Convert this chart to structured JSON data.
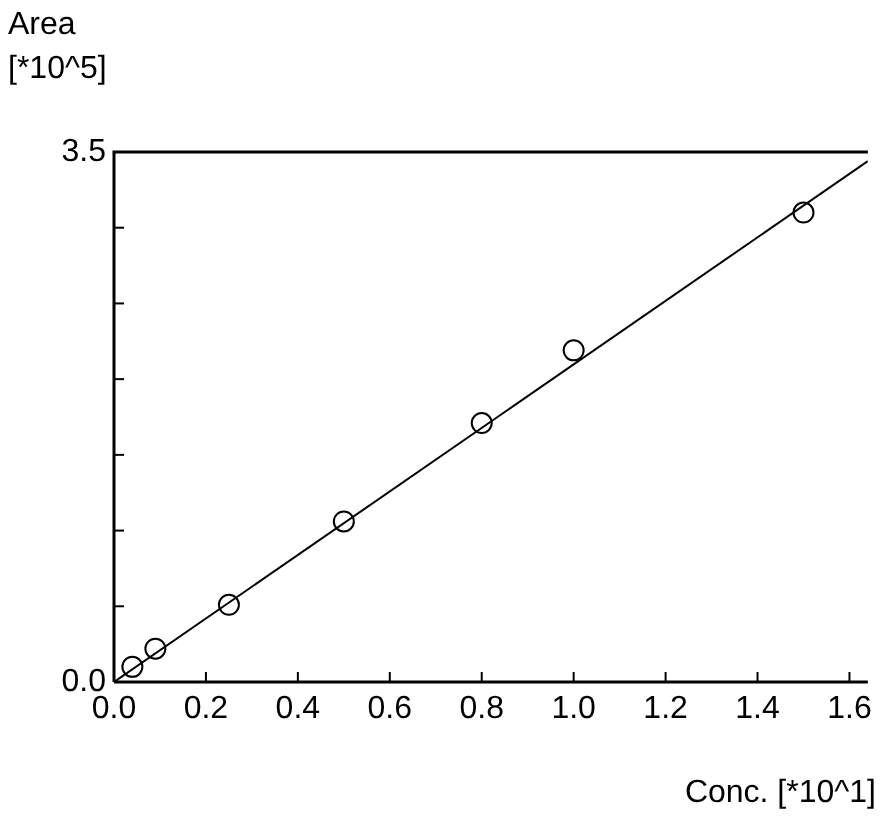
{
  "chart_data": {
    "type": "scatter",
    "xlabel": "Conc. [*10^1]",
    "ylabel": "Area\n[*10^5]",
    "xlim": [
      0,
      1.64
    ],
    "ylim": [
      0,
      3.5
    ],
    "xticks": [
      {
        "value": 0,
        "label": "0.0"
      },
      {
        "value": 0.2,
        "label": "0.2"
      },
      {
        "value": 0.4,
        "label": "0.4"
      },
      {
        "value": 0.6,
        "label": "0.6"
      },
      {
        "value": 0.8,
        "label": "0.8"
      },
      {
        "value": 1.0,
        "label": "1.0"
      },
      {
        "value": 1.2,
        "label": "1.2"
      },
      {
        "value": 1.4,
        "label": "1.4"
      },
      {
        "value": 1.6,
        "label": "1.6"
      }
    ],
    "yticks": [
      {
        "value": 0,
        "label": "0.0"
      },
      {
        "value": 0.5,
        "label": null
      },
      {
        "value": 1.0,
        "label": null
      },
      {
        "value": 1.5,
        "label": null
      },
      {
        "value": 2.0,
        "label": null
      },
      {
        "value": 2.5,
        "label": null
      },
      {
        "value": 3.0,
        "label": null
      },
      {
        "value": 3.5,
        "label": "3.5"
      }
    ],
    "series": [
      {
        "color": "#000000",
        "marker": "circle",
        "x": [
          0.04,
          0.09,
          0.25,
          0.5,
          0.8,
          1.0,
          1.5
        ],
        "values": [
          0.1,
          0.22,
          0.51,
          1.06,
          1.71,
          2.19,
          3.1
        ]
      },
      {
        "type": "line",
        "color": "#000000",
        "marker": "none",
        "line_style": "solid",
        "x": [
          0,
          1.64
        ],
        "values": [
          0.0,
          3.44
        ]
      }
    ]
  }
}
